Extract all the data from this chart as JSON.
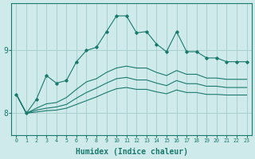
{
  "xlabel": "Humidex (Indice chaleur)",
  "bg_color": "#ceeaea",
  "grid_color": "#aacfcf",
  "line_color": "#1a7a6e",
  "x_values": [
    0,
    1,
    2,
    3,
    4,
    5,
    6,
    7,
    8,
    9,
    10,
    11,
    12,
    13,
    14,
    15,
    16,
    17,
    18,
    19,
    20,
    21,
    22,
    23
  ],
  "series_marked": [
    [
      8.3,
      8.0,
      8.22,
      8.6,
      8.48,
      8.52,
      8.82,
      9.0,
      9.05,
      9.3,
      9.55,
      9.55,
      9.28,
      9.3,
      9.1,
      8.98,
      9.3,
      8.98,
      8.98,
      8.88,
      8.88,
      8.82,
      8.82,
      8.82
    ]
  ],
  "series_smooth": [
    [
      8.3,
      8.0,
      8.08,
      8.15,
      8.17,
      8.25,
      8.38,
      8.5,
      8.55,
      8.65,
      8.72,
      8.75,
      8.72,
      8.72,
      8.65,
      8.6,
      8.68,
      8.62,
      8.62,
      8.56,
      8.56,
      8.54,
      8.54,
      8.54
    ],
    [
      8.3,
      8.0,
      8.05,
      8.08,
      8.1,
      8.14,
      8.24,
      8.33,
      8.4,
      8.48,
      8.55,
      8.57,
      8.53,
      8.53,
      8.48,
      8.44,
      8.52,
      8.47,
      8.47,
      8.43,
      8.43,
      8.41,
      8.41,
      8.41
    ],
    [
      8.3,
      8.0,
      8.02,
      8.04,
      8.05,
      8.08,
      8.14,
      8.2,
      8.26,
      8.33,
      8.39,
      8.41,
      8.38,
      8.38,
      8.34,
      8.31,
      8.37,
      8.33,
      8.33,
      8.3,
      8.3,
      8.29,
      8.29,
      8.29
    ]
  ],
  "yticks": [
    8,
    9
  ],
  "ylim": [
    7.65,
    9.75
  ],
  "xlim": [
    -0.5,
    23.5
  ]
}
